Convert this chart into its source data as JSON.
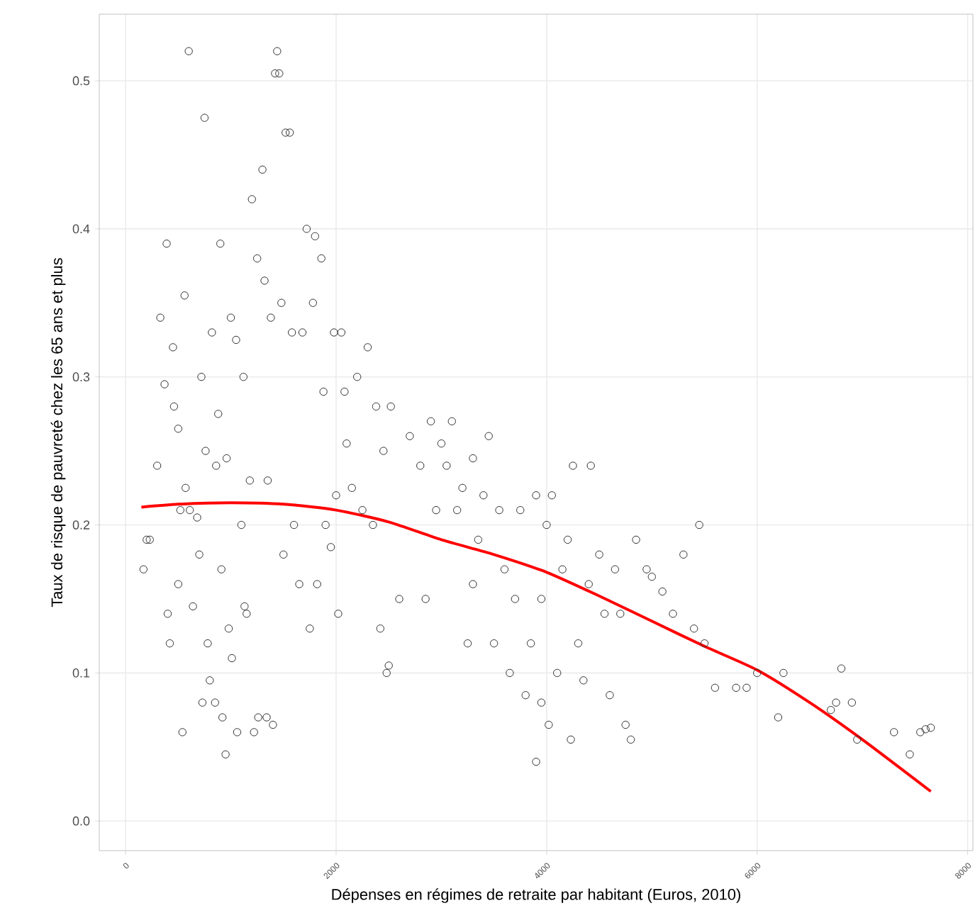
{
  "chart_data": {
    "type": "scatter",
    "xlabel": "Dépenses en régimes de retraite par habitant (Euros, 2010)",
    "ylabel": "Taux de risque de pauvreté chez les 65 ans et plus",
    "xlim": [
      -250,
      8050
    ],
    "ylim": [
      -0.02,
      0.545
    ],
    "xticks": [
      0,
      2000,
      4000,
      6000,
      8000
    ],
    "yticks": [
      {
        "value": 0,
        "label": "0.0"
      },
      {
        "value": 0.1,
        "label": "0.1"
      },
      {
        "value": 0.2,
        "label": "0.2"
      },
      {
        "value": 0.3,
        "label": "0.3"
      },
      {
        "value": 0.4,
        "label": "0.4"
      },
      {
        "value": 0.5,
        "label": "0.5"
      }
    ],
    "grid": true,
    "marker": "circle",
    "series": [
      {
        "color": "#333333",
        "x": [
          170,
          200,
          230,
          300,
          330,
          370,
          390,
          400,
          420,
          450,
          460,
          500,
          500,
          520,
          540,
          560,
          570,
          600,
          610,
          640,
          680,
          700,
          720,
          730,
          750,
          760,
          780,
          800,
          820,
          850,
          860,
          880,
          900,
          910,
          920,
          950,
          960,
          980,
          1000,
          1010,
          1050,
          1060,
          1100,
          1120,
          1130,
          1150,
          1180,
          1200,
          1220,
          1250,
          1260,
          1300,
          1320,
          1340,
          1350,
          1380,
          1400,
          1420,
          1440,
          1460,
          1480,
          1500,
          1520,
          1560,
          1580,
          1600,
          1650,
          1680,
          1720,
          1750,
          1780,
          1800,
          1820,
          1860,
          1880,
          1900,
          1950,
          1980,
          2000,
          2020,
          2050,
          2080,
          2100,
          2150,
          2200,
          2250,
          2300,
          2350,
          2380,
          2420,
          2450,
          2480,
          2500,
          2520,
          2600,
          2700,
          2800,
          2850,
          2900,
          2950,
          3000,
          3050,
          3100,
          3150,
          3200,
          3250,
          3300,
          3300,
          3350,
          3400,
          3450,
          3500,
          3550,
          3600,
          3650,
          3700,
          3750,
          3800,
          3850,
          3900,
          3900,
          3950,
          3950,
          4000,
          4020,
          4050,
          4100,
          4150,
          4200,
          4230,
          4250,
          4300,
          4350,
          4400,
          4420,
          4500,
          4550,
          4600,
          4650,
          4700,
          4750,
          4800,
          4850,
          4950,
          5000,
          5100,
          5200,
          5300,
          5400,
          5450,
          5500,
          5600,
          5800,
          5900,
          6000,
          6200,
          6250,
          6700,
          6750,
          6800,
          6900,
          6950,
          7300,
          7450,
          7550,
          7600,
          7650
        ],
        "values": [
          0.17,
          0.19,
          0.19,
          0.24,
          0.34,
          0.295,
          0.39,
          0.14,
          0.12,
          0.32,
          0.28,
          0.265,
          0.16,
          0.21,
          0.06,
          0.355,
          0.225,
          0.52,
          0.21,
          0.145,
          0.205,
          0.18,
          0.3,
          0.08,
          0.475,
          0.25,
          0.12,
          0.095,
          0.33,
          0.08,
          0.24,
          0.275,
          0.39,
          0.17,
          0.07,
          0.045,
          0.245,
          0.13,
          0.34,
          0.11,
          0.325,
          0.06,
          0.2,
          0.3,
          0.145,
          0.14,
          0.23,
          0.42,
          0.06,
          0.38,
          0.07,
          0.44,
          0.365,
          0.07,
          0.23,
          0.34,
          0.065,
          0.505,
          0.52,
          0.505,
          0.35,
          0.18,
          0.465,
          0.465,
          0.33,
          0.2,
          0.16,
          0.33,
          0.4,
          0.13,
          0.35,
          0.395,
          0.16,
          0.38,
          0.29,
          0.2,
          0.185,
          0.33,
          0.22,
          0.14,
          0.33,
          0.29,
          0.255,
          0.225,
          0.3,
          0.21,
          0.32,
          0.2,
          0.28,
          0.13,
          0.25,
          0.1,
          0.105,
          0.28,
          0.15,
          0.26,
          0.24,
          0.15,
          0.27,
          0.21,
          0.255,
          0.24,
          0.27,
          0.21,
          0.225,
          0.12,
          0.16,
          0.245,
          0.19,
          0.22,
          0.26,
          0.12,
          0.21,
          0.17,
          0.1,
          0.15,
          0.21,
          0.085,
          0.12,
          0.04,
          0.22,
          0.15,
          0.08,
          0.2,
          0.065,
          0.22,
          0.1,
          0.17,
          0.19,
          0.055,
          0.24,
          0.12,
          0.095,
          0.16,
          0.24,
          0.18,
          0.14,
          0.085,
          0.17,
          0.14,
          0.065,
          0.055,
          0.19,
          0.17,
          0.165,
          0.155,
          0.14,
          0.18,
          0.13,
          0.2,
          0.12,
          0.09,
          0.09,
          0.09,
          0.1,
          0.07,
          0.1,
          0.075,
          0.08,
          0.103,
          0.08,
          0.055,
          0.06,
          0.045,
          0.06,
          0.062,
          0.063
        ]
      },
      {
        "type": "line",
        "marker": "none",
        "color": "#ff0000",
        "x": [
          150,
          500,
          1000,
          1500,
          2000,
          2500,
          3000,
          3500,
          4000,
          4500,
          5000,
          5500,
          6000,
          6500,
          7000,
          7650
        ],
        "values": [
          0.212,
          0.214,
          0.215,
          0.214,
          0.21,
          0.202,
          0.19,
          0.18,
          0.168,
          0.152,
          0.135,
          0.118,
          0.102,
          0.08,
          0.055,
          0.02
        ]
      }
    ]
  }
}
